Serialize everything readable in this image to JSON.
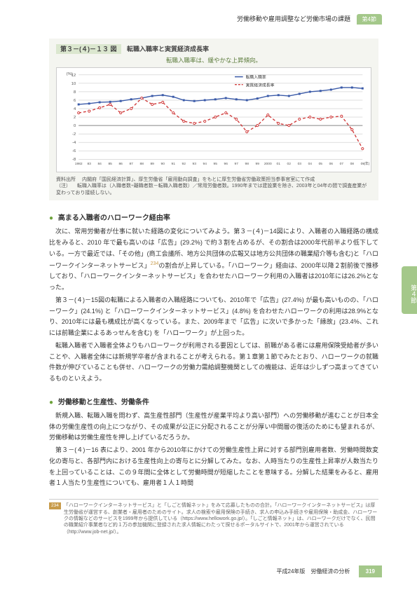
{
  "header": {
    "running_title": "労働移動や雇用調整など労働市場の課題",
    "section_tab": "第4節"
  },
  "figure": {
    "number": "第３－(４)－１３ 図",
    "title": "転職入職率と実質経済成長率",
    "subtitle": "転職入職率は、緩やかな上昇傾向。",
    "y_axis_label": "(%)",
    "legend": {
      "series1": "転職入職率",
      "series2": "実質経済成長率"
    },
    "ylim": [
      -8,
      12
    ],
    "ytick_step": 2,
    "x_years": [
      1982,
      83,
      84,
      85,
      86,
      87,
      88,
      89,
      90,
      91,
      92,
      93,
      94,
      95,
      96,
      97,
      98,
      99,
      2000,
      "01",
      "02",
      "03",
      "04",
      "05",
      "06",
      "07",
      "08",
      "09"
    ],
    "x_suffix": "(年)",
    "series1_values": [
      5.0,
      5.2,
      5.5,
      5.6,
      5.8,
      6.2,
      6.5,
      7.0,
      7.2,
      6.8,
      6.0,
      5.8,
      6.0,
      6.2,
      6.5,
      6.2,
      6.0,
      6.4,
      7.0,
      7.2,
      7.0,
      7.5,
      8.0,
      8.2,
      8.5,
      9.0,
      9.0,
      8.8
    ],
    "series2_values": [
      3.0,
      3.4,
      4.2,
      5.0,
      3.0,
      4.0,
      6.5,
      5.0,
      5.5,
      3.0,
      1.0,
      0.5,
      1.0,
      2.0,
      3.0,
      1.5,
      -1.5,
      0.0,
      2.5,
      0.5,
      0.0,
      1.5,
      2.0,
      1.5,
      2.0,
      2.2,
      -1.0,
      -5.5
    ],
    "colors": {
      "series1": "#3a5aa8",
      "series2": "#d03a3a",
      "grid": "#bbbbbb",
      "bg": "#ffffff"
    },
    "source_label": "資料出所",
    "source_text": "内閣府「国民経済計算」、厚生労働省「雇用動向調査」をもとに厚生労働省労働政策担当参事官室にて作成",
    "note_label": "（注）",
    "note_text": "転職入職率は（入職者数÷離職者数－転職入職者数）／常用労働者数。1990年までは建設業を除き、2003年と04年の間で調査産業が変わっており接続しない。"
  },
  "section1": {
    "heading": "高まる入職者のハローワーク経由率",
    "p1": "次に、常用労働者が仕事に就いた経路の変化についてみよう。第３－(４)－14図により、入職者の入職経路の構成比をみると、2010 年で最も高いのは「広告」(29.2%) で約３割を占めるが、その割合は2000年代前半より低下している。一方で最近では、「その他」(商工会議所、地方公共団体の広報又は地方公共団体の職業紹介等も含む)と「ハローワークインターネットサービス」",
    "p1_tail": "の割合が上昇している。「ハローワーク」経由は、2000年以降２割前後で推移しており、「ハローワークインターネットサービス」を合わせたハローワーク利用の入職者は2010年には26.2%となった。",
    "p2": "第３－(４)－15図の転職による入職者の入職経路についても、2010年で「広告」(27.4%) が最も高いものの、「ハローワーク」(24.1%) と「ハローワークインターネットサービス」(4.8%) を合わせたハローワークの利用は28.9%となり、2010年には最も構成比が高くなっている。また、2009年まで「広告」に次いで多かった「縁故」(23.4%、これには前職企業によるあっせんを含む) を「ハローワーク」が上回った。",
    "p3": "転職入職者で入職者全体よりもハローワークが利用される要因としては、前職がある者には雇用保険受給者が多いことや、入職者全体には新規学卒者が含まれることが考えられる。第１章第１節でみたとおり、ハローワークの就職件数が伸びていることも併せ、ハローワークの労働力需給調整機関としての機能は、近年は少しずつ高まってきているものといえよう。",
    "fn_ref": "234"
  },
  "section2": {
    "heading": "労働移動と生産性、労働条件",
    "p1": "新規入職、転職入職を問わず、高生産性部門（生産性が産業平均より高い部門）への労働移動が進むことが日本全体の労働生産性の向上につながり、その成果が公正に分配されることが分厚い中間層の復活のためにも望まれるが、労働移動は労働生産性を押し上げているだろうか。",
    "p2": "第３－(４)－16 表により、2001 年から2010年にかけての労働生産性上昇に対する部門別雇用者数、労働時間数変化の寄与と、各部門内における生産性向上の寄与とに分解してみた。なお、人時当たりの生産性上昇率が人数当たりを上回っていることは、この９年間に全体として労働時間が短縮したことを意味する。分解した結果をみると、雇用者１人当たり生産性についても、雇用者１人１時間"
  },
  "footnote": {
    "num": "234",
    "text": "「ハローワークインターネットサービス」と「しごと情報ネット」をみて応募したものの合計。「ハローワークインターネットサービス」は厚生労働省が運営する、創業者・雇用者のためのサイト。求人の検索や雇用保険の手続き、求人の申込み手続きや雇用保険・助成金、ハローワークの情報などのサービスを1999年から提供している（https://www.hellowork.go.jp/）。「しごと情報ネット」は、ハローワークだけでなく、民間の職業紹介事業者など約１万の参加機関に登録された求人情報にわたって探せるポータルサイトで、2001年から運営されている（http://www.job-net.jp/）。"
  },
  "footer": {
    "book": "平成24年版　労働経済の分析",
    "page": "319"
  },
  "side_tab": "第４節"
}
